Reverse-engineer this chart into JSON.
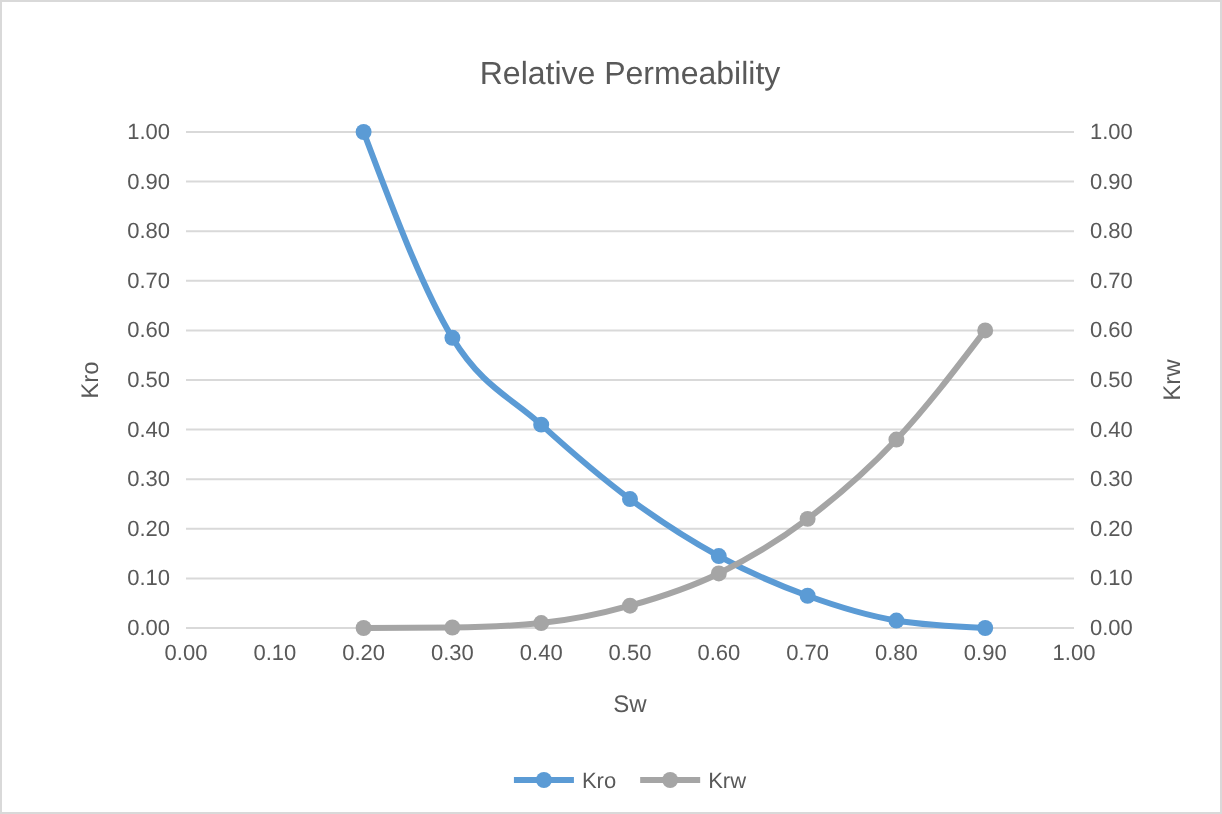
{
  "chart_data": {
    "type": "line",
    "title": "Relative Permeability",
    "xlabel": "Sw",
    "ylabel": "Kro",
    "y2label": "Krw",
    "x": [
      0.2,
      0.3,
      0.4,
      0.5,
      0.6,
      0.7,
      0.8,
      0.9
    ],
    "series": [
      {
        "name": "Kro",
        "color": "#5b9bd5",
        "values": [
          1.0,
          0.585,
          0.41,
          0.26,
          0.145,
          0.065,
          0.015,
          0.0
        ]
      },
      {
        "name": "Krw",
        "color": "#a5a5a5",
        "axis": "y2",
        "values": [
          0.0,
          0.001,
          0.01,
          0.045,
          0.11,
          0.22,
          0.38,
          0.6
        ]
      }
    ],
    "xlim": [
      0,
      1
    ],
    "xticks": [
      {
        "value": 0,
        "label": "0.00"
      },
      {
        "value": 0.1,
        "label": "0.10"
      },
      {
        "value": 0.2,
        "label": "0.20"
      },
      {
        "value": 0.3,
        "label": "0.30"
      },
      {
        "value": 0.4,
        "label": "0.40"
      },
      {
        "value": 0.5,
        "label": "0.50"
      },
      {
        "value": 0.6,
        "label": "0.60"
      },
      {
        "value": 0.7,
        "label": "0.70"
      },
      {
        "value": 0.8,
        "label": "0.80"
      },
      {
        "value": 0.9,
        "label": "0.90"
      },
      {
        "value": 1,
        "label": "1.00"
      }
    ],
    "ylim": [
      0,
      1
    ],
    "yticks": [
      {
        "value": 0,
        "label": "0.00"
      },
      {
        "value": 0.1,
        "label": "0.10"
      },
      {
        "value": 0.2,
        "label": "0.20"
      },
      {
        "value": 0.3,
        "label": "0.30"
      },
      {
        "value": 0.4,
        "label": "0.40"
      },
      {
        "value": 0.5,
        "label": "0.50"
      },
      {
        "value": 0.6,
        "label": "0.60"
      },
      {
        "value": 0.7,
        "label": "0.70"
      },
      {
        "value": 0.8,
        "label": "0.80"
      },
      {
        "value": 0.9,
        "label": "0.90"
      },
      {
        "value": 1,
        "label": "1.00"
      }
    ],
    "y2lim": [
      0,
      1
    ],
    "y2ticks": [
      {
        "value": 0,
        "label": "0.00"
      },
      {
        "value": 0.1,
        "label": "0.10"
      },
      {
        "value": 0.2,
        "label": "0.20"
      },
      {
        "value": 0.3,
        "label": "0.30"
      },
      {
        "value": 0.4,
        "label": "0.40"
      },
      {
        "value": 0.5,
        "label": "0.50"
      },
      {
        "value": 0.6,
        "label": "0.60"
      },
      {
        "value": 0.7,
        "label": "0.70"
      },
      {
        "value": 0.8,
        "label": "0.80"
      },
      {
        "value": 0.9,
        "label": "0.90"
      },
      {
        "value": 1,
        "label": "1.00"
      }
    ],
    "grid": "y",
    "legend": "bottom",
    "marker": "circle",
    "line_style": "solid"
  }
}
